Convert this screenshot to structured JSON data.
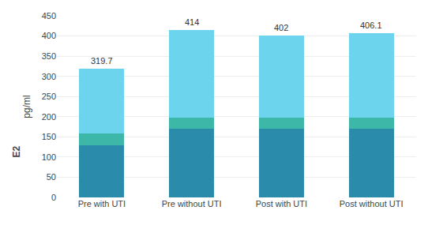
{
  "chart_data": {
    "type": "bar",
    "stacked": true,
    "categories": [
      "Pre with UTI",
      "Pre without UTI",
      "Post with UTI",
      "Post without UTI"
    ],
    "series": [
      {
        "color": "#2a8caa",
        "values": [
          130,
          170,
          170,
          170
        ]
      },
      {
        "color": "#3db8a8",
        "values": [
          28,
          28,
          28,
          28
        ]
      },
      {
        "color": "#6cd4ec",
        "values": [
          161.7,
          216,
          204,
          208.1
        ]
      }
    ],
    "totals": [
      319.7,
      414,
      402,
      406.1
    ],
    "data_labels": true,
    "ylabel": "pg/ml",
    "annotations": [
      "E2"
    ],
    "ylim": [
      0,
      450
    ],
    "yticks": [
      0,
      50,
      100,
      150,
      200,
      250,
      300,
      350,
      400,
      450
    ],
    "grid": true
  }
}
